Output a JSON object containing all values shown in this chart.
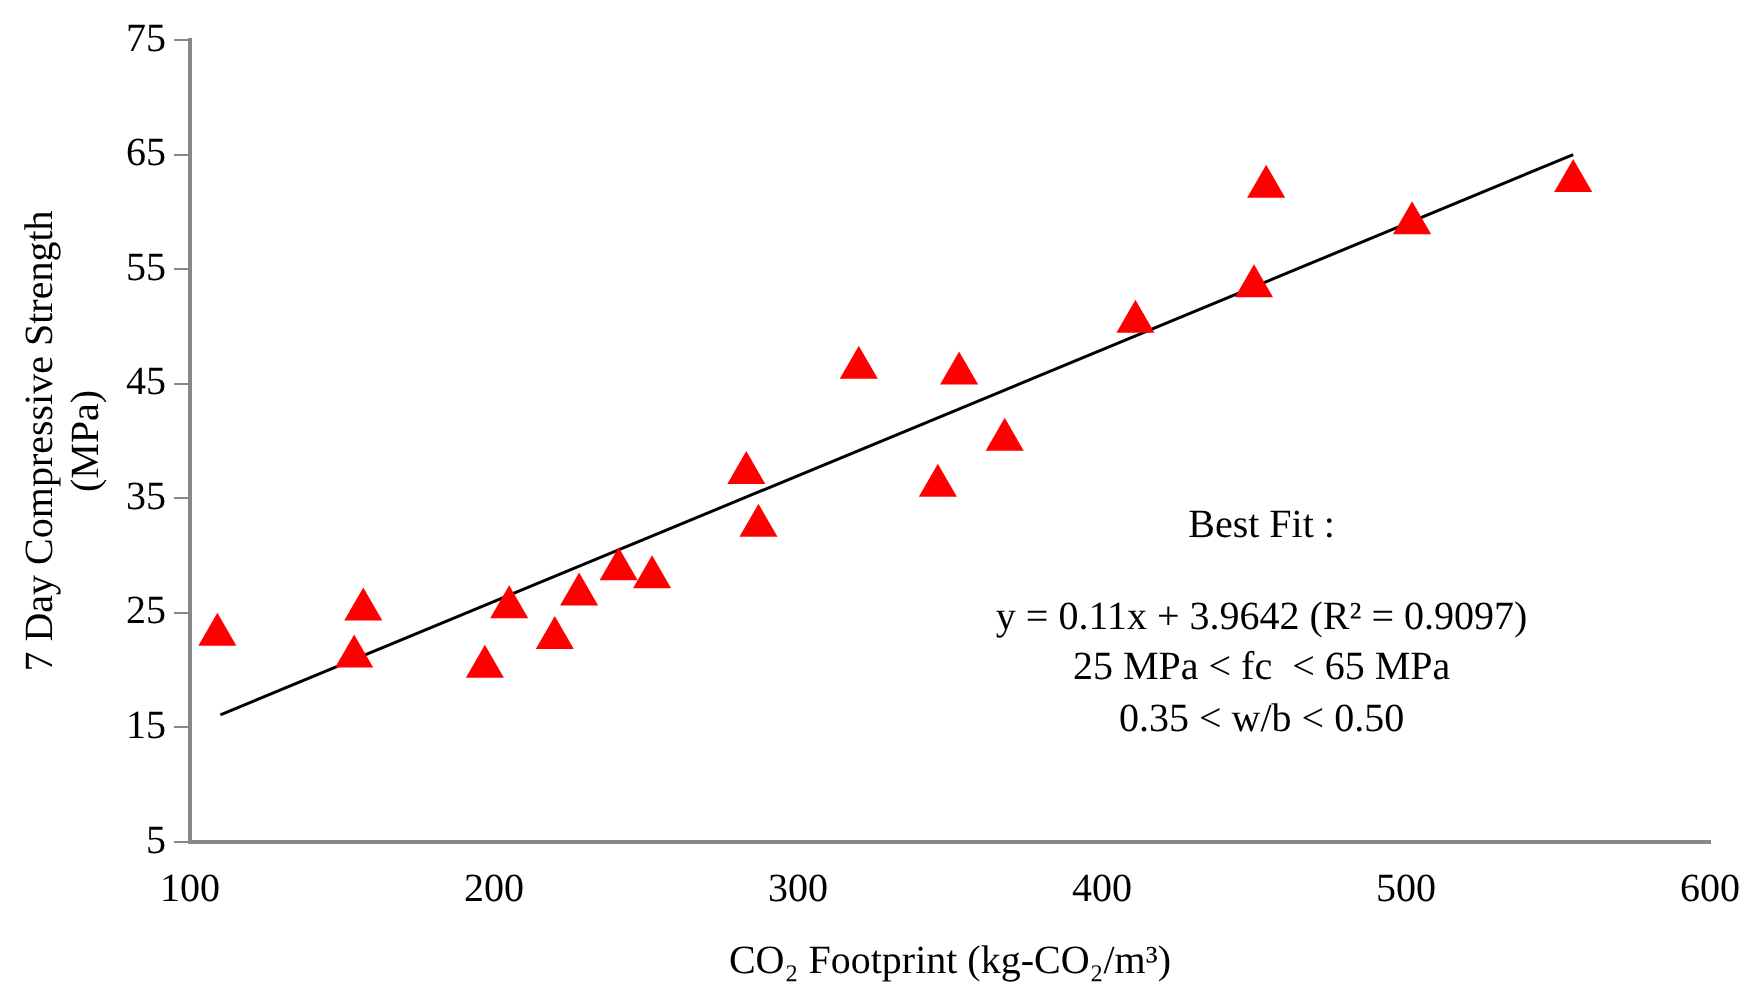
{
  "chart_data": {
    "type": "scatter",
    "xlabel": "CO₂ Footprint (kg-CO₂/m³)",
    "ylabel": "7 Day Compressive Strength (MPa)",
    "xlim": [
      100,
      600
    ],
    "xticks": [
      100,
      200,
      300,
      400,
      500,
      600
    ],
    "ylim": [
      5,
      75
    ],
    "yticks": [
      5,
      15,
      25,
      35,
      45,
      55,
      65,
      75
    ],
    "grid": false,
    "legend": false,
    "marker": "triangle",
    "series": [
      {
        "color": "#ff0000",
        "x": [
          109,
          154,
          157,
          197,
          205,
          220,
          228,
          241,
          252,
          283,
          287,
          320,
          353,
          368,
          346,
          411,
          454,
          450,
          502,
          555
        ],
        "values": [
          23.1,
          21.2,
          25.3,
          20.3,
          25.5,
          22.8,
          26.6,
          28.8,
          28.1,
          37.2,
          32.6,
          46.4,
          45.9,
          40.1,
          36.1,
          50.4,
          62.2,
          53.5,
          59.0,
          62.7
        ]
      },
      {
        "type": "line",
        "color": "#000000",
        "marker": "none",
        "line_style": "solid",
        "x": [
          110,
          555
        ],
        "values": [
          16.1,
          65.0
        ]
      }
    ],
    "annotations": [
      "Best Fit :",
      "y = 0.11x + 3.9642 (R² = 0.9097)",
      "25 MPa < fc  < 65 MPa",
      "0.35 < w/b < 0.50"
    ]
  }
}
